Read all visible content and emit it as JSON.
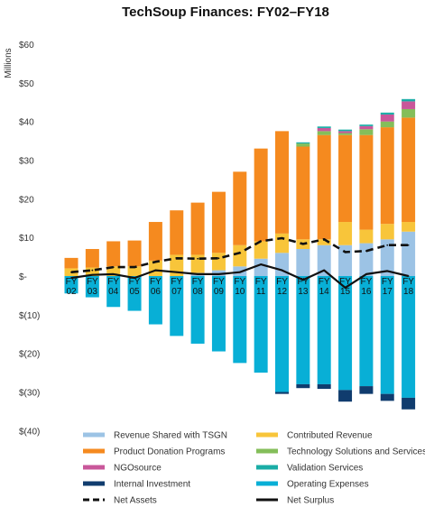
{
  "chart_data": {
    "type": "bar",
    "title": "TechSoup Finances: FY02–FY18",
    "ylabel": "Millions",
    "ylim": [
      -40,
      60
    ],
    "yticks": [
      60,
      50,
      40,
      30,
      20,
      10,
      0,
      -10,
      -20,
      -30,
      -40
    ],
    "ytick_labels": [
      "$60",
      "$50",
      "$40",
      "$30",
      "$20",
      "$10",
      "$-",
      "$(10)",
      "$(20)",
      "$(30)",
      "$(40)"
    ],
    "categories": [
      "FY 02",
      "FY 03",
      "FY 04",
      "FY 05",
      "FY 06",
      "FY 07",
      "FY 08",
      "FY 09",
      "FY 10",
      "FY 11",
      "FY 12",
      "FY 13",
      "FY 14",
      "FY 15",
      "FY 16",
      "FY 17",
      "FY 18"
    ],
    "category_lines": [
      [
        "FY",
        "02"
      ],
      [
        "FY",
        "03"
      ],
      [
        "FY",
        "04"
      ],
      [
        "FY",
        "05"
      ],
      [
        "FY",
        "06"
      ],
      [
        "FY",
        "07"
      ],
      [
        "FY",
        "08"
      ],
      [
        "FY",
        "09"
      ],
      [
        "FY",
        "10"
      ],
      [
        "FY",
        "11"
      ],
      [
        "FY",
        "12"
      ],
      [
        "FY",
        "13"
      ],
      [
        "FY",
        "14"
      ],
      [
        "FY",
        "15"
      ],
      [
        "FY",
        "16"
      ],
      [
        "FY",
        "17"
      ],
      [
        "FY",
        "18"
      ]
    ],
    "stack_positive": [
      {
        "name": "Revenue Shared with TSGN",
        "color": "#9cc3e5",
        "values": [
          0,
          0,
          0,
          0,
          0,
          0,
          0.8,
          1.5,
          2.5,
          4.5,
          6,
          7,
          8,
          8,
          8.5,
          9.5,
          11.5
        ]
      },
      {
        "name": "Contributed Revenue",
        "color": "#f8c53a",
        "values": [
          2,
          2.2,
          2.5,
          2.5,
          4,
          5.5,
          4.7,
          4.5,
          5.5,
          4.5,
          5,
          2.5,
          1.5,
          6,
          3.5,
          4,
          2.5
        ]
      },
      {
        "name": "Product Donation Programs",
        "color": "#f58a1f",
        "values": [
          2.7,
          4.8,
          6.5,
          6.7,
          10,
          11.5,
          13.5,
          15.8,
          19,
          24,
          26.5,
          24,
          27,
          22.5,
          24.5,
          25,
          27
        ]
      },
      {
        "name": "Technology Solutions and Services",
        "color": "#84be5a",
        "values": [
          0,
          0,
          0,
          0,
          0,
          0,
          0,
          0,
          0,
          0,
          0,
          0.8,
          1,
          0.5,
          1.5,
          1.5,
          2.2
        ]
      },
      {
        "name": "NGOsource",
        "color": "#c9579a",
        "values": [
          0,
          0,
          0,
          0,
          0,
          0,
          0,
          0,
          0,
          0,
          0,
          0,
          0.8,
          0.5,
          0.8,
          1.8,
          2
        ]
      },
      {
        "name": "Validation Services",
        "color": "#1aada6",
        "values": [
          0,
          0,
          0,
          0,
          0,
          0,
          0,
          0,
          0,
          0,
          0,
          0.3,
          0.4,
          0.4,
          0.4,
          0.5,
          0.6
        ]
      }
    ],
    "stack_negative": [
      {
        "name": "Operating Expenses",
        "color": "#08afd6",
        "values": [
          -4.5,
          -5.5,
          -8,
          -9,
          -12.5,
          -15.5,
          -17.5,
          -19.5,
          -22.5,
          -25,
          -30,
          -28,
          -28,
          -29.5,
          -28.5,
          -30.5,
          -31.5
        ]
      },
      {
        "name": "Internal Investment",
        "color": "#103c6e",
        "values": [
          0,
          0,
          0,
          0,
          0,
          0,
          0,
          0,
          0,
          0,
          -0.5,
          -1,
          -1.2,
          -3,
          -2,
          -1.8,
          -3
        ]
      }
    ],
    "lines": [
      {
        "name": "Net Assets",
        "color": "#111111",
        "dashed": true,
        "values": [
          1,
          1.5,
          2.3,
          2.3,
          3.7,
          4.6,
          4.5,
          4.6,
          6,
          9,
          9.8,
          8.3,
          9.5,
          6.2,
          6.5,
          8,
          8
        ]
      },
      {
        "name": "Net Surplus",
        "color": "#111111",
        "dashed": false,
        "values": [
          -0.5,
          0.3,
          0.5,
          -0.5,
          1.5,
          1,
          0.5,
          0.5,
          1,
          3,
          1.5,
          -1,
          1.5,
          -3,
          0.5,
          1.3,
          0
        ]
      }
    ],
    "legend": {
      "placement": "bottom",
      "left": [
        {
          "label": "Revenue Shared with TSGN",
          "color": "#9cc3e5",
          "kind": "bar"
        },
        {
          "label": "Product Donation Programs",
          "color": "#f58a1f",
          "kind": "bar"
        },
        {
          "label": "NGOsource",
          "color": "#c9579a",
          "kind": "bar"
        },
        {
          "label": "Internal Investment",
          "color": "#103c6e",
          "kind": "bar"
        },
        {
          "label": "Net Assets",
          "color": "#111111",
          "kind": "dash"
        }
      ],
      "right": [
        {
          "label": "Contributed Revenue",
          "color": "#f8c53a",
          "kind": "bar"
        },
        {
          "label": "Technology Solutions and Services",
          "color": "#84be5a",
          "kind": "bar"
        },
        {
          "label": "Validation Services",
          "color": "#1aada6",
          "kind": "bar"
        },
        {
          "label": "Operating Expenses",
          "color": "#08afd6",
          "kind": "bar"
        },
        {
          "label": "Net Surplus",
          "color": "#111111",
          "kind": "line"
        }
      ]
    }
  }
}
